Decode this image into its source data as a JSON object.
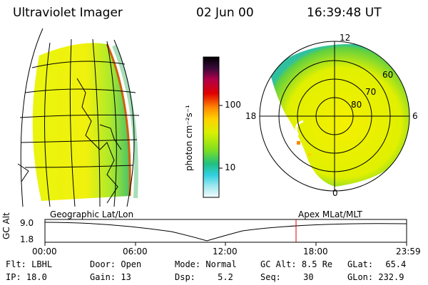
{
  "header": {
    "instrument": "Ultraviolet Imager",
    "date": "02 Jun 00",
    "time": "16:39:48 UT"
  },
  "colorbar": {
    "unit_label": "photon cm⁻²s⁻¹",
    "ticks": [
      "100",
      "10"
    ]
  },
  "polar_plot": {
    "mlt_labels": [
      "12",
      "18",
      "6",
      "0"
    ],
    "mlat_labels": [
      "60",
      "70",
      "80"
    ]
  },
  "panel_labels": {
    "left": "Geographic Lat/Lon",
    "right": "Apex MLat/MLT"
  },
  "timeline": {
    "ylabel": "GC Alt",
    "y_ticks": [
      "9.0",
      "1.8"
    ],
    "x_ticks": [
      "00:00",
      "06:00",
      "12:00",
      "18:00",
      "23:59"
    ],
    "current_time_marker": "16:39:48"
  },
  "status": {
    "filter_label": "Flt:",
    "filter_value": "LBHL",
    "ip_label": "IP:",
    "ip_value": "18.0",
    "door_label": "Door:",
    "door_value": "Open",
    "gain_label": "Gain:",
    "gain_value": "13",
    "mode_label": "Mode:",
    "mode_value": "Normal",
    "dsp_label": "Dsp:",
    "dsp_value": "5.2",
    "gcalt_label": "GC Alt:",
    "gcalt_value": "8.5 Re",
    "seq_label": "Seq:",
    "seq_value": "30",
    "glat_label": "GLat:",
    "glat_value": "65.4",
    "glon_label": "GLon:",
    "glon_value": "232.9"
  },
  "colors": {
    "marker": "#dd0000",
    "aurora_core": "#e8f000",
    "aurora_edge": "#40d040"
  }
}
